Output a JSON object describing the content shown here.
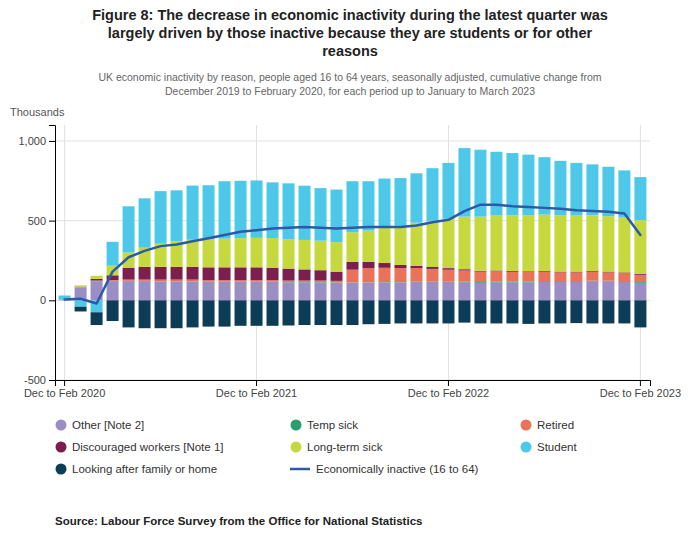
{
  "chart_data": {
    "type": "bar",
    "stacked": true,
    "title": "Figure 8: The decrease in economic inactivity during the latest quarter was\nlargely driven by those inactive because they are students or for other\nreasons",
    "subtitle": "UK economic inactivity by reason, people aged 16 to 64 years, seasonally adjusted, cumulative change from\nDecember 2019 to February 2020, for each period up to January to March 2023",
    "source": "Source: Labour Force Survey from the Office for National Statistics",
    "ylabel": "Thousands",
    "categories": [
      "Dec to Feb 2020",
      null,
      null,
      null,
      null,
      null,
      null,
      null,
      null,
      null,
      null,
      null,
      "Dec to Feb 2021",
      null,
      null,
      null,
      null,
      null,
      null,
      null,
      null,
      null,
      null,
      null,
      "Dec to Feb 2022",
      null,
      null,
      null,
      null,
      null,
      null,
      null,
      null,
      null,
      null,
      null,
      "Dec to Feb 2023"
    ],
    "series": [
      {
        "name": "Other [Note 2]",
        "color": "#9B8EC4",
        "type": "bar",
        "values": [
          5,
          80,
          120,
          120,
          120,
          120,
          118,
          118,
          118,
          115,
          115,
          115,
          115,
          115,
          112,
          112,
          112,
          110,
          110,
          110,
          112,
          112,
          115,
          115,
          115,
          112,
          110,
          112,
          112,
          112,
          115,
          115,
          115,
          118,
          118,
          115,
          110
        ]
      },
      {
        "name": "Temp sick",
        "color": "#2A9D6E",
        "type": "bar",
        "values": [
          0,
          2,
          2,
          2,
          2,
          2,
          2,
          2,
          2,
          2,
          2,
          2,
          2,
          2,
          2,
          2,
          2,
          2,
          2,
          2,
          2,
          2,
          2,
          2,
          2,
          5,
          5,
          5,
          5,
          5,
          5,
          5,
          5,
          5,
          5,
          5,
          5
        ]
      },
      {
        "name": "Retired",
        "color": "#E8735A",
        "type": "bar",
        "values": [
          0,
          2,
          2,
          5,
          8,
          8,
          10,
          10,
          10,
          10,
          10,
          10,
          10,
          10,
          10,
          10,
          10,
          10,
          80,
          90,
          90,
          88,
          85,
          80,
          75,
          70,
          65,
          65,
          62,
          60,
          58,
          55,
          55,
          55,
          52,
          50,
          45
        ]
      },
      {
        "name": "Discouraged workers [Note 1]",
        "color": "#7D1F4E",
        "type": "bar",
        "values": [
          0,
          2,
          10,
          30,
          75,
          80,
          80,
          80,
          80,
          80,
          80,
          80,
          80,
          78,
          75,
          70,
          65,
          58,
          50,
          40,
          30,
          20,
          15,
          12,
          10,
          8,
          5,
          5,
          5,
          5,
          5,
          5,
          5,
          5,
          5,
          5,
          5
        ]
      },
      {
        "name": "Long-term sick",
        "color": "#C5D93E",
        "type": "bar",
        "values": [
          0,
          8,
          20,
          60,
          95,
          120,
          145,
          160,
          170,
          175,
          180,
          183,
          185,
          185,
          185,
          185,
          185,
          185,
          185,
          195,
          220,
          245,
          270,
          290,
          310,
          330,
          340,
          345,
          350,
          352,
          355,
          355,
          352,
          350,
          348,
          345,
          338
        ]
      },
      {
        "name": "Student",
        "color": "#4DC8E8",
        "type": "bar",
        "values": [
          25,
          -40,
          -75,
          150,
          290,
          310,
          330,
          320,
          340,
          340,
          360,
          360,
          360,
          350,
          350,
          340,
          330,
          330,
          320,
          310,
          310,
          300,
          310,
          330,
          350,
          430,
          420,
          400,
          390,
          380,
          360,
          340,
          330,
          320,
          310,
          295,
          270
        ]
      },
      {
        "name": "Looking after family or home",
        "color": "#0D3D56",
        "type": "bar",
        "values": [
          0,
          -30,
          -80,
          -130,
          -170,
          -175,
          -175,
          -175,
          -170,
          -165,
          -165,
          -160,
          -160,
          -160,
          -158,
          -155,
          -155,
          -155,
          -155,
          -150,
          -148,
          -145,
          -145,
          -145,
          -145,
          -140,
          -145,
          -145,
          -145,
          -148,
          -145,
          -145,
          -143,
          -145,
          -145,
          -145,
          -170
        ]
      },
      {
        "name": "Economically inactive (16 to 64)",
        "color": "#2B5BA8",
        "type": "line",
        "values": [
          5,
          10,
          -20,
          180,
          270,
          310,
          340,
          350,
          370,
          390,
          410,
          430,
          440,
          450,
          455,
          460,
          455,
          450,
          455,
          460,
          460,
          460,
          470,
          490,
          505,
          560,
          600,
          600,
          590,
          585,
          580,
          575,
          565,
          560,
          555,
          545,
          410
        ]
      }
    ],
    "ylim": [
      -500,
      1100
    ],
    "yticks": [
      -500,
      0,
      500,
      {
        "value": 1000,
        "label": "1,000"
      }
    ],
    "grid": true,
    "legend": "bottom"
  }
}
